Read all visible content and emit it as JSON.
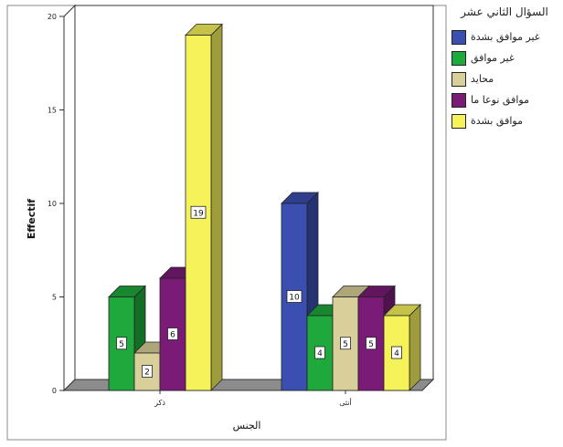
{
  "chart_data": {
    "type": "bar",
    "title": "",
    "xlabel": "الجنس",
    "ylabel": "Effectif",
    "ylim": [
      0,
      20
    ],
    "yticks": [
      0,
      5,
      10,
      15,
      20
    ],
    "grid": false,
    "style": "3d",
    "legend_position": "right",
    "legend_title": "السؤال الثاني عشر",
    "categories": [
      "ذكر",
      "أنثى"
    ],
    "series": [
      {
        "name": "غير موافق بشدة",
        "color": "#3b4fb0",
        "values": [
          0,
          10
        ],
        "labels": [
          "",
          "10"
        ]
      },
      {
        "name": "غير موافق",
        "color": "#1fa83c",
        "values": [
          5,
          4
        ],
        "labels": [
          "5",
          "4"
        ]
      },
      {
        "name": "محايد",
        "color": "#d9cf9a",
        "values": [
          2,
          5
        ],
        "labels": [
          "2",
          "5"
        ]
      },
      {
        "name": "موافق نوعا ما",
        "color": "#7b1b78",
        "values": [
          6,
          5
        ],
        "labels": [
          "6",
          "5"
        ]
      },
      {
        "name": "موافق بشدة",
        "color": "#f5f25a",
        "values": [
          19,
          4
        ],
        "labels": [
          "19",
          "4"
        ]
      }
    ]
  }
}
